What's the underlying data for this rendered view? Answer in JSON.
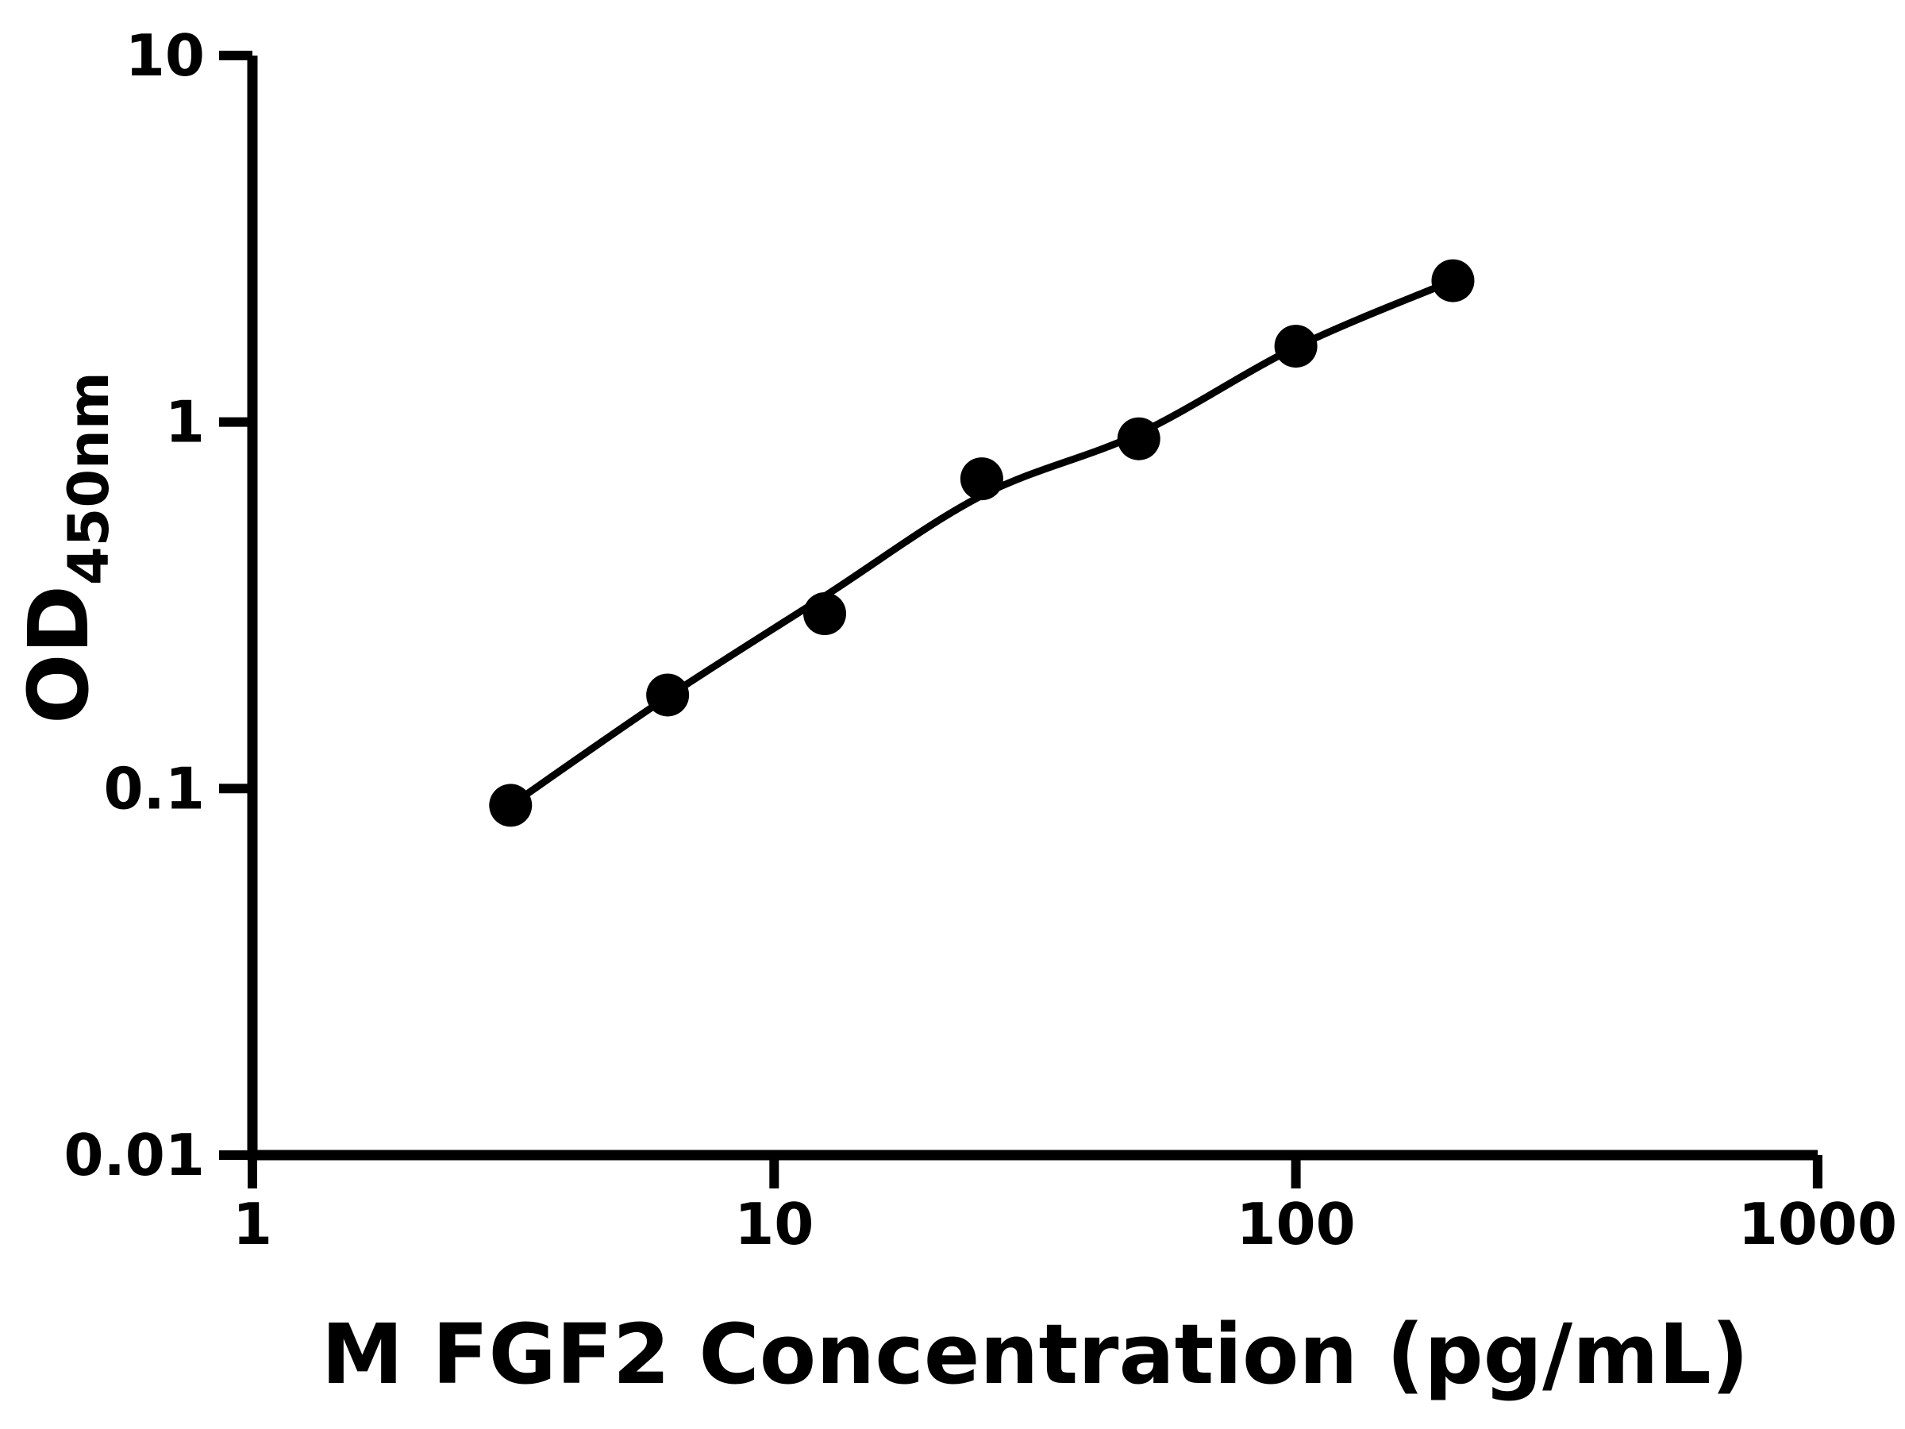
{
  "figure": {
    "background_color": "#ffffff",
    "foreground_color": "#000000"
  },
  "chart_data": {
    "type": "scatter",
    "title": "",
    "xlabel": "M FGF2 Concentration (pg/mL)",
    "ylabel": "OD450nm",
    "ylabel_main": "OD",
    "ylabel_subscript": "450nm",
    "x_scale": "log10",
    "y_scale": "log10",
    "xlim": [
      1,
      1000
    ],
    "ylim": [
      0.01,
      10
    ],
    "x_ticks": [
      1,
      10,
      100,
      1000
    ],
    "x_tick_labels": [
      "1",
      "10",
      "100",
      "1000"
    ],
    "y_ticks": [
      10,
      1,
      0.1,
      0.01
    ],
    "y_tick_labels": [
      "10",
      "1",
      "0.1",
      "0.01"
    ],
    "grid": false,
    "legend_position": "none",
    "marker_color": "#000000",
    "line_color": "#000000",
    "series": [
      {
        "name": "standard-points",
        "type": "scatter",
        "marker": "filled-circle",
        "points": [
          [
            3.125,
            0.09
          ],
          [
            6.25,
            0.18
          ],
          [
            12.5,
            0.3
          ],
          [
            25,
            0.7
          ],
          [
            50,
            0.9
          ],
          [
            100,
            1.61
          ],
          [
            200,
            2.43
          ]
        ]
      },
      {
        "name": "fit-curve",
        "type": "line",
        "points": [
          [
            3.125,
            0.09
          ],
          [
            6.25,
            0.178
          ],
          [
            12.5,
            0.335
          ],
          [
            25,
            0.63
          ],
          [
            50,
            0.93
          ],
          [
            100,
            1.6
          ],
          [
            200,
            2.43
          ]
        ]
      }
    ]
  }
}
